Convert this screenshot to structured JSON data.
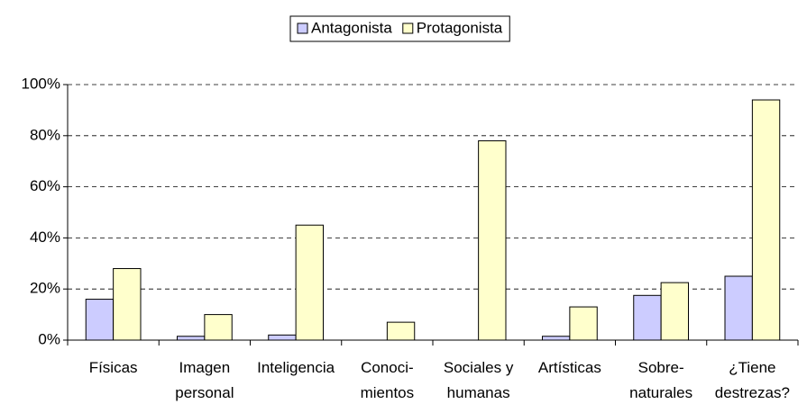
{
  "chart_data": {
    "type": "bar",
    "categories": [
      [
        "Físicas"
      ],
      [
        "Imagen",
        "personal"
      ],
      [
        "Inteligencia"
      ],
      [
        "Conoci-",
        "mientos"
      ],
      [
        "Sociales y",
        "humanas"
      ],
      [
        "Artísticas"
      ],
      [
        "Sobre-",
        "naturales"
      ],
      [
        "¿Tiene",
        "destrezas?"
      ]
    ],
    "series": [
      {
        "name": "Antagonista",
        "color": "#ccccff",
        "values": [
          16,
          1.5,
          2,
          0,
          0,
          1.5,
          17.5,
          25
        ]
      },
      {
        "name": "Protagonista",
        "color": "#ffffcc",
        "values": [
          28,
          10,
          45,
          7,
          78,
          13,
          22.5,
          94
        ]
      }
    ],
    "ylim": [
      0,
      100
    ],
    "yticks": [
      {
        "value": 0,
        "label": "0%"
      },
      {
        "value": 20,
        "label": "20%"
      },
      {
        "value": 40,
        "label": "40%"
      },
      {
        "value": 60,
        "label": "60%"
      },
      {
        "value": 80,
        "label": "80%"
      },
      {
        "value": 100,
        "label": "100%"
      }
    ],
    "grid": true,
    "legend": "top"
  }
}
